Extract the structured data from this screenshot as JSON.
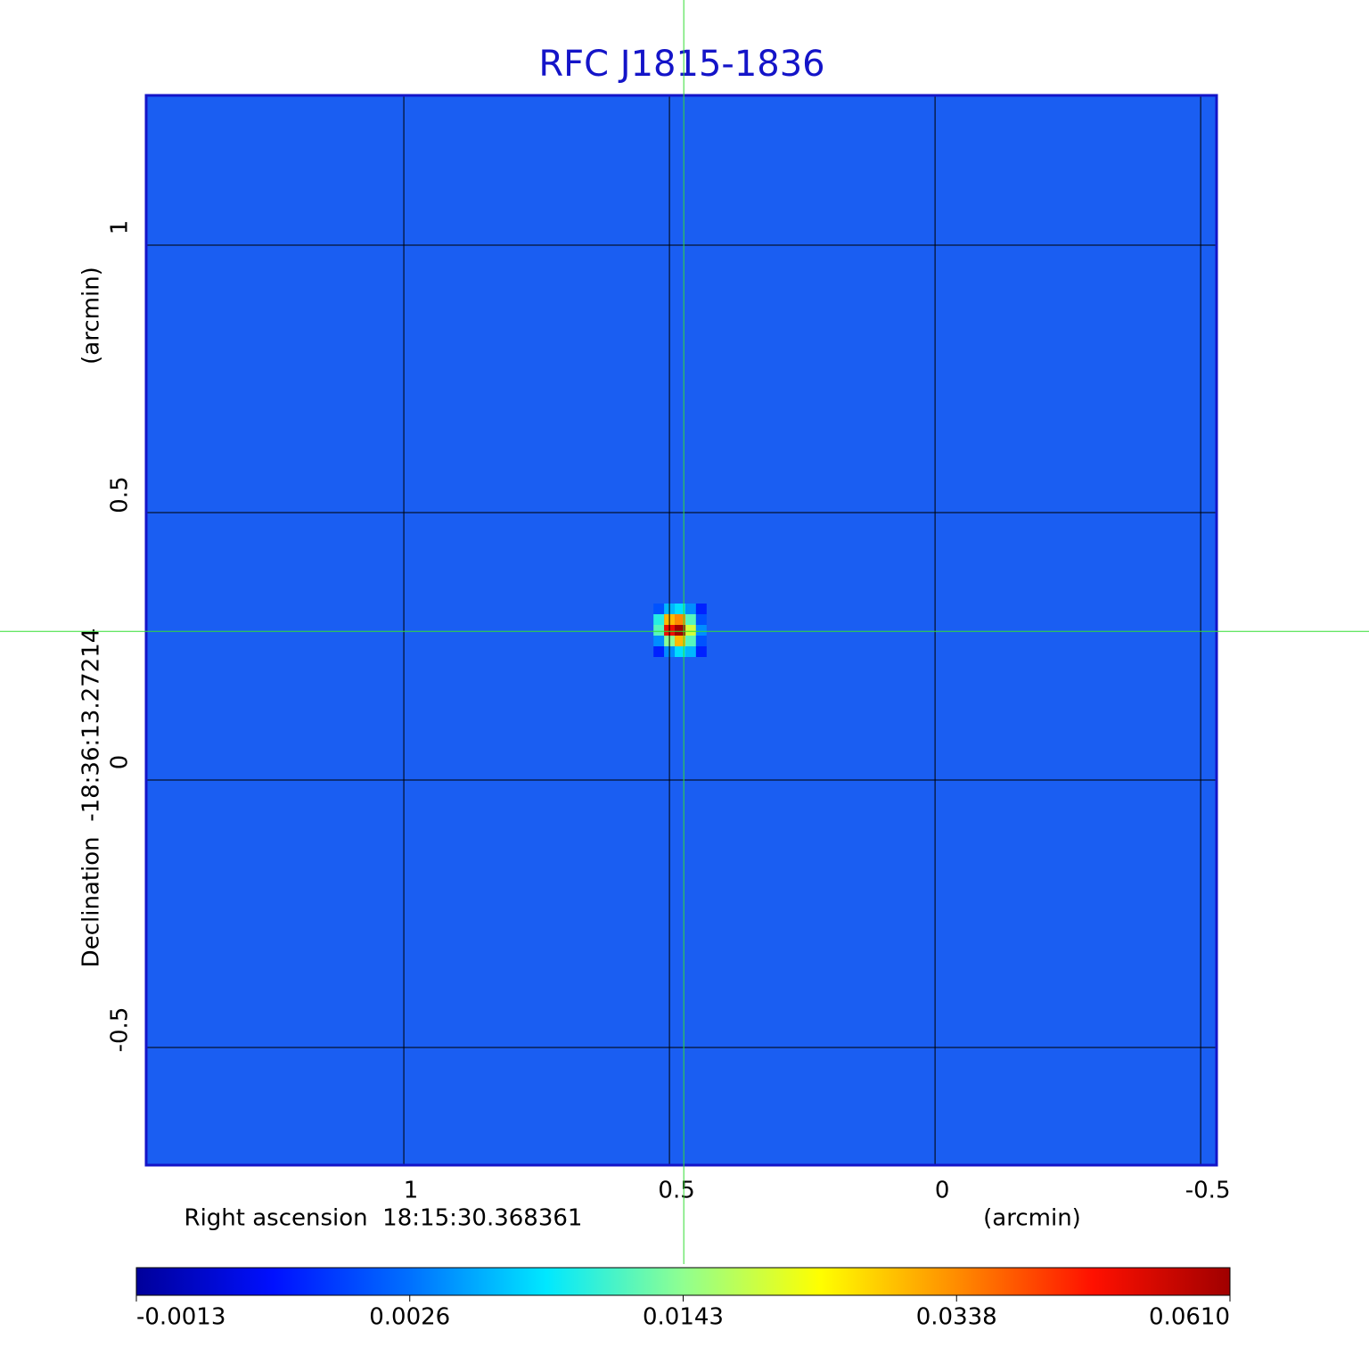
{
  "chart_data": {
    "type": "heatmap",
    "title": "RFC J1815-1836",
    "x_label": "Right ascension  18:15:30.368361",
    "x_unit": "(arcmin)",
    "y_label": "Declination  -18:36:13.27214",
    "y_unit": "(arcmin)",
    "xlim": [
      1.485,
      -0.53
    ],
    "ylim": [
      -0.72,
      1.28
    ],
    "xticks": [
      1.0,
      0.5,
      0.0,
      -0.5
    ],
    "yticks": [
      -0.5,
      0.0,
      0.5,
      1.0
    ],
    "grid": true,
    "crosshair": {
      "x": 0.473,
      "y": 0.278,
      "color": "#33dd33"
    },
    "x": [
      0.52,
      0.5,
      0.48,
      0.46,
      0.44
    ],
    "y": [
      0.32,
      0.3,
      0.28,
      0.26,
      0.24
    ],
    "values": [
      [
        0.002,
        0.006,
        0.008,
        0.004,
        0.001
      ],
      [
        0.01,
        0.03,
        0.034,
        0.012,
        0.002
      ],
      [
        0.012,
        0.05,
        0.061,
        0.02,
        0.004
      ],
      [
        0.004,
        0.014,
        0.03,
        0.012,
        0.002
      ],
      [
        0.001,
        0.004,
        0.008,
        0.006,
        0.001
      ]
    ],
    "colorbar_ticks": [
      -0.0013,
      0.0026,
      0.0143,
      0.0338,
      {
        "value": 0.061,
        "label": "0.0610"
      }
    ],
    "colormap": [
      "#00009a",
      "#0010ff",
      "#0070ff",
      "#00e8ff",
      "#90ff90",
      "#ffff00",
      "#ff8c00",
      "#ff1000",
      "#a00000"
    ]
  }
}
